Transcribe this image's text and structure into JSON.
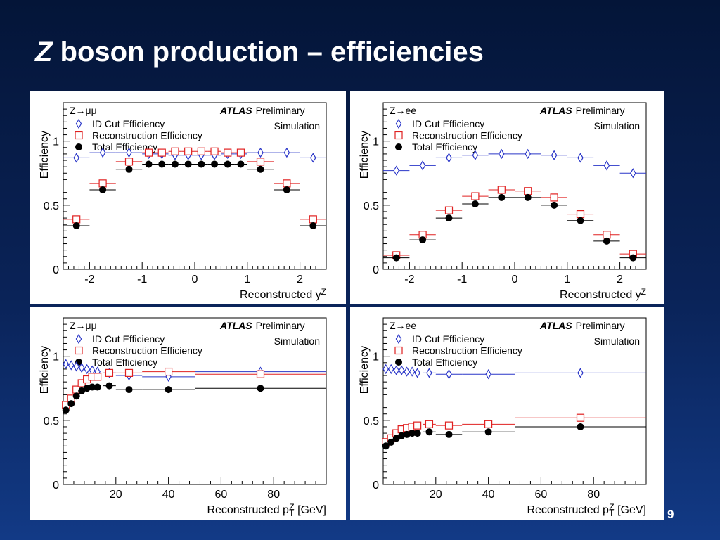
{
  "slide": {
    "title_italic": "Z",
    "title_rest": " boson production – efficiencies",
    "page_number": "9",
    "background_colors": [
      "#041538",
      "#123a86"
    ]
  },
  "colors": {
    "id_cut": "#2a36c8",
    "reconstruction": "#e02020",
    "total": "#000000"
  },
  "chart_data": [
    {
      "type": "scatter",
      "channel": "Z→μμ",
      "experiment": "ATLAS",
      "tag": "Preliminary",
      "subtag": "Simulation",
      "xlabel": "Reconstructed y",
      "xlabel_sup": "Z",
      "xlabel_unit": "",
      "ylabel": "Efficiency",
      "xlim": [
        -2.5,
        2.5
      ],
      "ylim": [
        0,
        1.3
      ],
      "xticks": [
        -2,
        -1,
        0,
        1,
        2
      ],
      "yticks": [
        0,
        0.5,
        1
      ],
      "legend_position": "top-left",
      "series": [
        {
          "name": "ID Cut Efficiency",
          "marker": "diamond-open",
          "x": [
            -2.25,
            -1.75,
            -1.25,
            -0.875,
            -0.625,
            -0.375,
            -0.125,
            0.125,
            0.375,
            0.625,
            0.875,
            1.25,
            1.75,
            2.25
          ],
          "y": [
            0.87,
            0.91,
            0.91,
            0.9,
            0.9,
            0.89,
            0.89,
            0.89,
            0.89,
            0.9,
            0.9,
            0.91,
            0.91,
            0.87
          ],
          "xerr": [
            0.25,
            0.25,
            0.25,
            0.125,
            0.125,
            0.125,
            0.125,
            0.125,
            0.125,
            0.125,
            0.125,
            0.25,
            0.25,
            0.25
          ]
        },
        {
          "name": "Reconstruction Efficiency",
          "marker": "square-open",
          "x": [
            -2.25,
            -1.75,
            -1.25,
            -0.875,
            -0.625,
            -0.375,
            -0.125,
            0.125,
            0.375,
            0.625,
            0.875,
            1.25,
            1.75,
            2.25
          ],
          "y": [
            0.39,
            0.67,
            0.84,
            0.91,
            0.91,
            0.92,
            0.92,
            0.92,
            0.92,
            0.91,
            0.91,
            0.84,
            0.67,
            0.39
          ],
          "xerr": [
            0.25,
            0.25,
            0.25,
            0.125,
            0.125,
            0.125,
            0.125,
            0.125,
            0.125,
            0.125,
            0.125,
            0.25,
            0.25,
            0.25
          ]
        },
        {
          "name": "Total Efficiency",
          "marker": "circle-filled",
          "x": [
            -2.25,
            -1.75,
            -1.25,
            -0.875,
            -0.625,
            -0.375,
            -0.125,
            0.125,
            0.375,
            0.625,
            0.875,
            1.25,
            1.75,
            2.25
          ],
          "y": [
            0.34,
            0.62,
            0.78,
            0.82,
            0.82,
            0.82,
            0.82,
            0.82,
            0.82,
            0.82,
            0.82,
            0.78,
            0.62,
            0.34
          ],
          "xerr": [
            0.25,
            0.25,
            0.25,
            0.125,
            0.125,
            0.125,
            0.125,
            0.125,
            0.125,
            0.125,
            0.125,
            0.25,
            0.25,
            0.25
          ]
        }
      ]
    },
    {
      "type": "scatter",
      "channel": "Z→ee",
      "experiment": "ATLAS",
      "tag": "Preliminary",
      "subtag": "Simulation",
      "xlabel": "Reconstructed y",
      "xlabel_sup": "Z",
      "xlabel_unit": "",
      "ylabel": "Efficiency",
      "xlim": [
        -2.5,
        2.5
      ],
      "ylim": [
        0,
        1.3
      ],
      "xticks": [
        -2,
        -1,
        0,
        1,
        2
      ],
      "yticks": [
        0,
        0.5,
        1
      ],
      "legend_position": "top-left",
      "series": [
        {
          "name": "ID Cut Efficiency",
          "marker": "diamond-open",
          "x": [
            -2.25,
            -1.75,
            -1.25,
            -0.75,
            -0.25,
            0.25,
            0.75,
            1.25,
            1.75,
            2.25
          ],
          "y": [
            0.77,
            0.81,
            0.87,
            0.89,
            0.9,
            0.9,
            0.89,
            0.87,
            0.81,
            0.75
          ],
          "xerr": [
            0.25,
            0.25,
            0.25,
            0.25,
            0.25,
            0.25,
            0.25,
            0.25,
            0.25,
            0.25
          ]
        },
        {
          "name": "Reconstruction Efficiency",
          "marker": "square-open",
          "x": [
            -2.25,
            -1.75,
            -1.25,
            -0.75,
            -0.25,
            0.25,
            0.75,
            1.25,
            1.75,
            2.25
          ],
          "y": [
            0.11,
            0.27,
            0.46,
            0.57,
            0.62,
            0.61,
            0.56,
            0.43,
            0.27,
            0.12
          ],
          "xerr": [
            0.25,
            0.25,
            0.25,
            0.25,
            0.25,
            0.25,
            0.25,
            0.25,
            0.25,
            0.25
          ]
        },
        {
          "name": "Total Efficiency",
          "marker": "circle-filled",
          "x": [
            -2.25,
            -1.75,
            -1.25,
            -0.75,
            -0.25,
            0.25,
            0.75,
            1.25,
            1.75,
            2.25
          ],
          "y": [
            0.09,
            0.23,
            0.4,
            0.51,
            0.56,
            0.56,
            0.5,
            0.38,
            0.22,
            0.09
          ],
          "xerr": [
            0.25,
            0.25,
            0.25,
            0.25,
            0.25,
            0.25,
            0.25,
            0.25,
            0.25,
            0.25
          ]
        }
      ]
    },
    {
      "type": "scatter",
      "channel": "Z→μμ",
      "experiment": "ATLAS",
      "tag": "Preliminary",
      "subtag": "Simulation",
      "xlabel": "Reconstructed p",
      "xlabel_sup": "Z",
      "xlabel_sub": "T",
      "xlabel_unit": " [GeV]",
      "ylabel": "Efficiency",
      "xlim": [
        0,
        100
      ],
      "ylim": [
        0,
        1.3
      ],
      "xticks": [
        20,
        40,
        60,
        80
      ],
      "yticks": [
        0,
        0.5,
        1
      ],
      "legend_position": "top-left",
      "series": [
        {
          "name": "ID Cut Efficiency",
          "marker": "diamond-open",
          "x": [
            1,
            3,
            5,
            7,
            9,
            11,
            13,
            17.5,
            25,
            40,
            75
          ],
          "y": [
            0.94,
            0.93,
            0.92,
            0.91,
            0.9,
            0.89,
            0.88,
            0.87,
            0.85,
            0.84,
            0.88
          ],
          "xerr": [
            1,
            1,
            1,
            1,
            1,
            1,
            1,
            2.5,
            5,
            10,
            25
          ]
        },
        {
          "name": "Reconstruction Efficiency",
          "marker": "square-open",
          "x": [
            1,
            3,
            5,
            7,
            9,
            11,
            13,
            17.5,
            25,
            40,
            75
          ],
          "y": [
            0.62,
            0.67,
            0.74,
            0.79,
            0.82,
            0.84,
            0.84,
            0.87,
            0.87,
            0.88,
            0.86
          ],
          "xerr": [
            1,
            1,
            1,
            1,
            1,
            1,
            1,
            2.5,
            5,
            10,
            25
          ]
        },
        {
          "name": "Total Efficiency",
          "marker": "circle-filled",
          "x": [
            1,
            3,
            5,
            7,
            9,
            11,
            13,
            17.5,
            25,
            40,
            75
          ],
          "y": [
            0.58,
            0.63,
            0.69,
            0.73,
            0.75,
            0.76,
            0.76,
            0.77,
            0.74,
            0.74,
            0.75
          ],
          "xerr": [
            1,
            1,
            1,
            1,
            1,
            1,
            1,
            2.5,
            5,
            10,
            25
          ]
        }
      ]
    },
    {
      "type": "scatter",
      "channel": "Z→ee",
      "experiment": "ATLAS",
      "tag": "Preliminary",
      "subtag": "Simulation",
      "xlabel": "Reconstructed p",
      "xlabel_sup": "Z",
      "xlabel_sub": "T",
      "xlabel_unit": " [GeV]",
      "ylabel": "Efficiency",
      "xlim": [
        0,
        100
      ],
      "ylim": [
        0,
        1.3
      ],
      "xticks": [
        20,
        40,
        60,
        80
      ],
      "yticks": [
        0,
        0.5,
        1
      ],
      "legend_position": "top-left",
      "series": [
        {
          "name": "ID Cut Efficiency",
          "marker": "diamond-open",
          "x": [
            1,
            3,
            5,
            7,
            9,
            11,
            13,
            17.5,
            25,
            40,
            75
          ],
          "y": [
            0.9,
            0.9,
            0.89,
            0.89,
            0.88,
            0.88,
            0.87,
            0.87,
            0.86,
            0.86,
            0.87
          ],
          "xerr": [
            1,
            1,
            1,
            1,
            1,
            1,
            1,
            2.5,
            5,
            10,
            25
          ]
        },
        {
          "name": "Reconstruction Efficiency",
          "marker": "square-open",
          "x": [
            1,
            3,
            5,
            7,
            9,
            11,
            13,
            17.5,
            25,
            40,
            75
          ],
          "y": [
            0.33,
            0.36,
            0.4,
            0.43,
            0.44,
            0.45,
            0.46,
            0.47,
            0.46,
            0.47,
            0.52
          ],
          "xerr": [
            1,
            1,
            1,
            1,
            1,
            1,
            1,
            2.5,
            5,
            10,
            25
          ]
        },
        {
          "name": "Total Efficiency",
          "marker": "circle-filled",
          "x": [
            1,
            3,
            5,
            7,
            9,
            11,
            13,
            17.5,
            25,
            40,
            75
          ],
          "y": [
            0.3,
            0.33,
            0.36,
            0.38,
            0.39,
            0.4,
            0.4,
            0.41,
            0.39,
            0.41,
            0.45
          ],
          "xerr": [
            1,
            1,
            1,
            1,
            1,
            1,
            1,
            2.5,
            5,
            10,
            25
          ]
        }
      ]
    }
  ]
}
